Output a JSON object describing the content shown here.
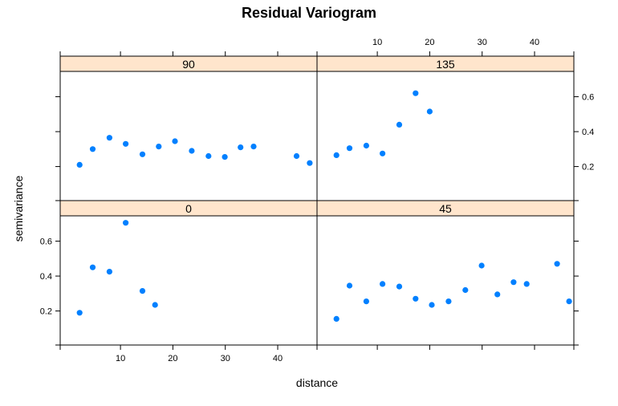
{
  "chart_data": {
    "type": "scatter",
    "title": "Residual Variogram",
    "xlabel": "distance",
    "ylabel": "semivariance",
    "xlim": [
      -1.5,
      47.5
    ],
    "ylim": [
      0.005,
      0.745
    ],
    "x_ticks": [
      10,
      20,
      30,
      40
    ],
    "y_ticks": [
      0.2,
      0.4,
      0.6
    ],
    "x_tick_labels": [
      "10",
      "20",
      "30",
      "40"
    ],
    "y_tick_labels": [
      "0.2",
      "0.4",
      "0.6"
    ],
    "grid": false,
    "legend": "none",
    "colors": {
      "point": "#0080ff",
      "strip": "#ffe5cc",
      "axis": "#000000"
    },
    "panels": [
      {
        "strip_label": "90",
        "points": [
          {
            "x": 2.2,
            "y": 0.21
          },
          {
            "x": 4.7,
            "y": 0.3
          },
          {
            "x": 7.9,
            "y": 0.365
          },
          {
            "x": 11.0,
            "y": 0.33
          },
          {
            "x": 14.2,
            "y": 0.27
          },
          {
            "x": 17.3,
            "y": 0.315
          },
          {
            "x": 20.4,
            "y": 0.345
          },
          {
            "x": 23.6,
            "y": 0.29
          },
          {
            "x": 26.8,
            "y": 0.26
          },
          {
            "x": 29.9,
            "y": 0.255
          },
          {
            "x": 32.9,
            "y": 0.31
          },
          {
            "x": 35.4,
            "y": 0.315
          },
          {
            "x": 43.6,
            "y": 0.26
          },
          {
            "x": 46.1,
            "y": 0.22
          }
        ]
      },
      {
        "strip_label": "135",
        "points": [
          {
            "x": 2.2,
            "y": 0.265
          },
          {
            "x": 4.7,
            "y": 0.305
          },
          {
            "x": 7.9,
            "y": 0.32
          },
          {
            "x": 11.0,
            "y": 0.275
          },
          {
            "x": 14.2,
            "y": 0.44
          },
          {
            "x": 17.3,
            "y": 0.62
          },
          {
            "x": 20.0,
            "y": 0.515
          }
        ]
      },
      {
        "strip_label": "0",
        "points": [
          {
            "x": 2.2,
            "y": 0.19
          },
          {
            "x": 4.7,
            "y": 0.45
          },
          {
            "x": 7.9,
            "y": 0.425
          },
          {
            "x": 11.0,
            "y": 0.705
          },
          {
            "x": 14.2,
            "y": 0.315
          },
          {
            "x": 16.6,
            "y": 0.235
          }
        ]
      },
      {
        "strip_label": "45",
        "points": [
          {
            "x": 2.2,
            "y": 0.155
          },
          {
            "x": 4.7,
            "y": 0.345
          },
          {
            "x": 7.9,
            "y": 0.255
          },
          {
            "x": 11.0,
            "y": 0.355
          },
          {
            "x": 14.2,
            "y": 0.34
          },
          {
            "x": 17.3,
            "y": 0.27
          },
          {
            "x": 20.4,
            "y": 0.235
          },
          {
            "x": 23.6,
            "y": 0.255
          },
          {
            "x": 26.8,
            "y": 0.32
          },
          {
            "x": 29.9,
            "y": 0.46
          },
          {
            "x": 32.9,
            "y": 0.295
          },
          {
            "x": 36.0,
            "y": 0.365
          },
          {
            "x": 38.5,
            "y": 0.355
          },
          {
            "x": 44.3,
            "y": 0.47
          },
          {
            "x": 46.6,
            "y": 0.255
          }
        ]
      }
    ]
  }
}
